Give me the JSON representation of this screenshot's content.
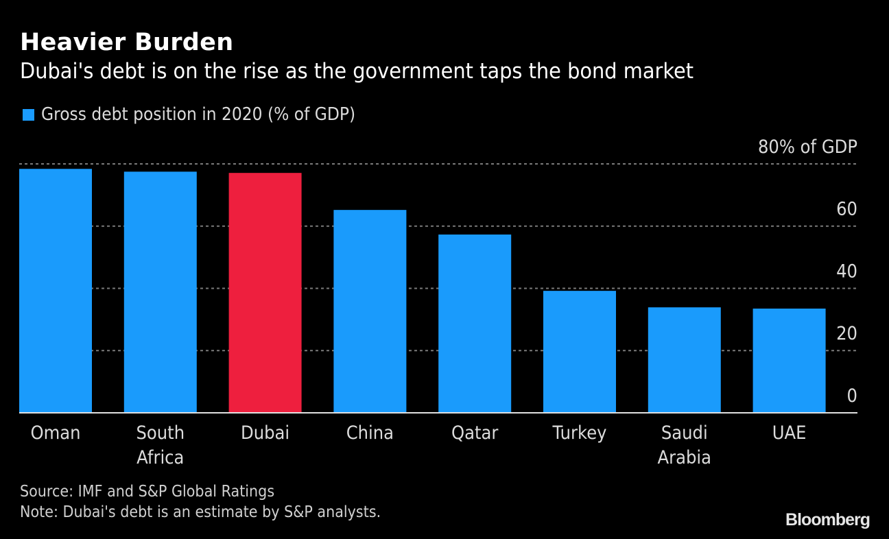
{
  "header": {
    "title": "Heavier Burden",
    "subtitle": "Dubai's debt is on the rise as the government taps the bond market"
  },
  "legend": {
    "label": "Gross debt position in 2020 (% of GDP)",
    "color": "#1a9bfc"
  },
  "chart_data": {
    "type": "bar",
    "title": "Heavier Burden",
    "subtitle": "Dubai's debt is on the rise as the government taps the bond market",
    "xlabel": "",
    "ylabel": "% of GDP",
    "categories": [
      [
        "Oman"
      ],
      [
        "South",
        "Africa"
      ],
      [
        "Dubai"
      ],
      [
        "China"
      ],
      [
        "Qatar"
      ],
      [
        "Turkey"
      ],
      [
        "Saudi",
        "Arabia"
      ],
      [
        "UAE"
      ]
    ],
    "series": [
      {
        "name": "Gross debt position in 2020 (% of GDP)",
        "values": [
          78.4,
          77.5,
          77.1,
          65.2,
          57.3,
          39.2,
          33.9,
          33.5
        ]
      }
    ],
    "highlight": {
      "index": 2,
      "color": "#ee1f3e"
    },
    "bar_color": "#1a9bfc",
    "ylim": [
      0,
      80
    ],
    "yticks": [
      0,
      20,
      40,
      60,
      80
    ],
    "ytick_labels": [
      "0",
      "20",
      "40",
      "60",
      "80% of GDP"
    ],
    "grid": true,
    "legend_position": "top-left",
    "axis_position": "right"
  },
  "footer": {
    "source": "Source: IMF and S&P Global Ratings",
    "note": "Note: Dubai's debt is an estimate by S&P analysts.",
    "brand": "Bloomberg"
  }
}
